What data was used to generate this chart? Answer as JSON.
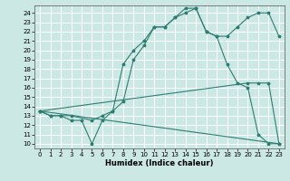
{
  "xlabel": "Humidex (Indice chaleur)",
  "bg_color": "#cce8e4",
  "grid_color": "#ffffff",
  "line_color": "#2e7d72",
  "xlim": [
    -0.5,
    23.5
  ],
  "ylim": [
    9.5,
    24.8
  ],
  "xticks": [
    0,
    1,
    2,
    3,
    4,
    5,
    6,
    7,
    8,
    9,
    10,
    11,
    12,
    13,
    14,
    15,
    16,
    17,
    18,
    19,
    20,
    21,
    22,
    23
  ],
  "yticks": [
    10,
    11,
    12,
    13,
    14,
    15,
    16,
    17,
    18,
    19,
    20,
    21,
    22,
    23,
    24
  ],
  "line1_x": [
    0,
    1,
    2,
    3,
    5,
    6,
    7,
    8,
    9,
    10,
    11,
    12,
    13,
    14,
    15,
    16,
    17,
    18,
    19,
    20,
    21,
    22,
    23
  ],
  "line1_y": [
    13.5,
    13.0,
    13.0,
    13.0,
    12.5,
    13.0,
    13.5,
    18.5,
    20.0,
    21.0,
    22.5,
    22.5,
    23.5,
    24.0,
    24.5,
    22.0,
    21.5,
    18.5,
    16.5,
    16.0,
    11.0,
    10.0,
    10.0
  ],
  "line2_x": [
    0,
    1,
    2,
    3,
    4,
    5,
    6,
    7,
    8,
    9,
    10,
    11,
    12,
    13,
    14,
    15,
    16,
    17,
    18,
    19,
    20,
    21,
    22,
    23
  ],
  "line2_y": [
    13.5,
    13.0,
    13.0,
    12.5,
    12.5,
    10.0,
    12.5,
    13.5,
    14.5,
    19.0,
    20.5,
    22.5,
    22.5,
    23.5,
    24.5,
    24.5,
    22.0,
    21.5,
    21.5,
    22.5,
    23.5,
    24.0,
    24.0,
    21.5
  ],
  "line3_x": [
    0,
    20,
    21,
    22,
    23
  ],
  "line3_y": [
    13.5,
    16.5,
    16.5,
    16.5,
    10.0
  ],
  "line4_x": [
    0,
    23
  ],
  "line4_y": [
    13.5,
    10.0
  ]
}
